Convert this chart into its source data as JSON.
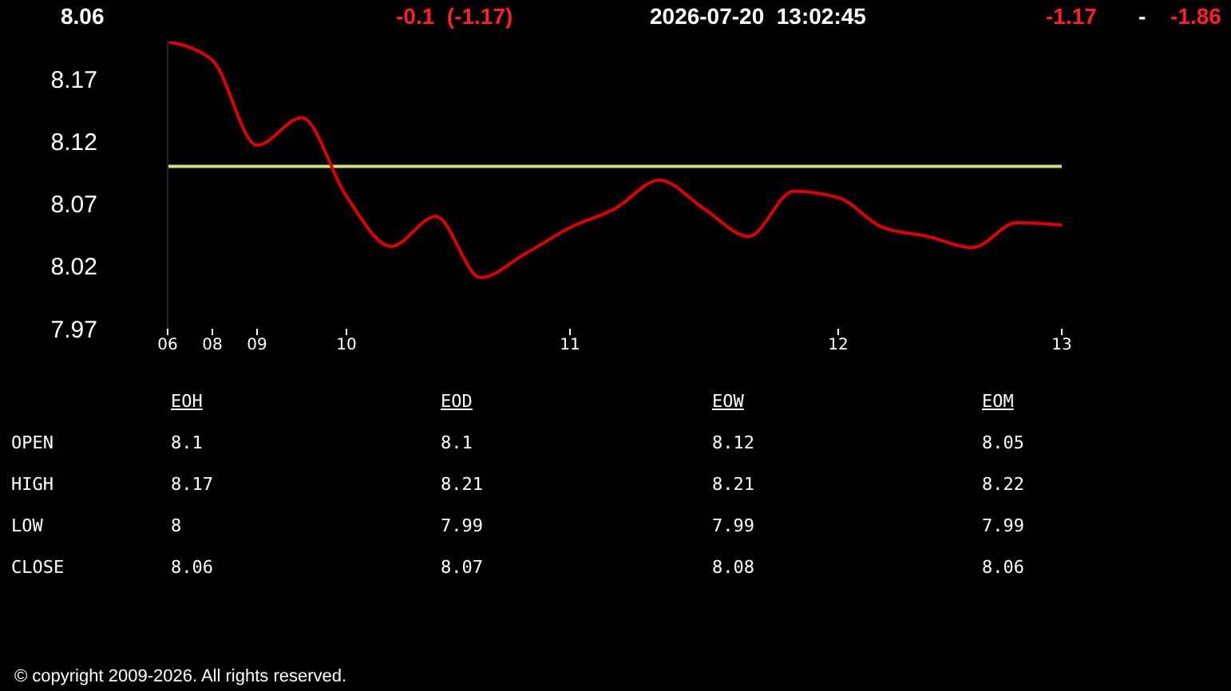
{
  "chart_data": [
    {
      "type": "line",
      "title": "8.06",
      "annotations": [
        "-0.1  (-1.17)",
        "2026-07-20  13:02:45",
        "-1.17",
        "-",
        "-1.86"
      ],
      "categories": [
        "06",
        "08",
        "09",
        null,
        "10",
        null,
        null,
        null,
        null,
        "11",
        null,
        null,
        null,
        null,
        null,
        "12",
        null,
        null,
        null,
        null,
        "13"
      ],
      "series": [
        {
          "color": "#e00000",
          "values": [
            8.2,
            8.185,
            8.117,
            8.139,
            8.076,
            8.036,
            8.06,
            8.011,
            8.03,
            8.051,
            8.066,
            8.089,
            8.066,
            8.044,
            8.08,
            8.075,
            8.051,
            8.044,
            8.035,
            8.055,
            8.053
          ]
        }
      ],
      "ylim": [
        7.97,
        8.2
      ],
      "yticks": [
        7.97,
        8.02,
        8.07,
        8.12,
        8.17
      ],
      "ref_lines": [
        {
          "axis": "y",
          "value": 8.1,
          "color": "#d4e070"
        }
      ],
      "grid": false,
      "legend": false,
      "marker": "none",
      "line_style": "solid"
    },
    {
      "type": "other",
      "categories": [
        "EOH",
        "EOD",
        "EOW",
        "EOM"
      ],
      "y_categories": [
        "OPEN",
        "HIGH",
        "LOW",
        "CLOSE"
      ],
      "cell_labels": [
        [
          "8.1",
          "8.1",
          "8.12",
          "8.05"
        ],
        [
          "8.17",
          "8.21",
          "8.21",
          "8.22"
        ],
        [
          "8",
          "7.99",
          "7.99",
          "7.99"
        ],
        [
          "8.06",
          "8.07",
          "8.08",
          "8.06"
        ]
      ],
      "annotations": [
        "© copyright 2009-2026. All rights reserved."
      ]
    }
  ]
}
